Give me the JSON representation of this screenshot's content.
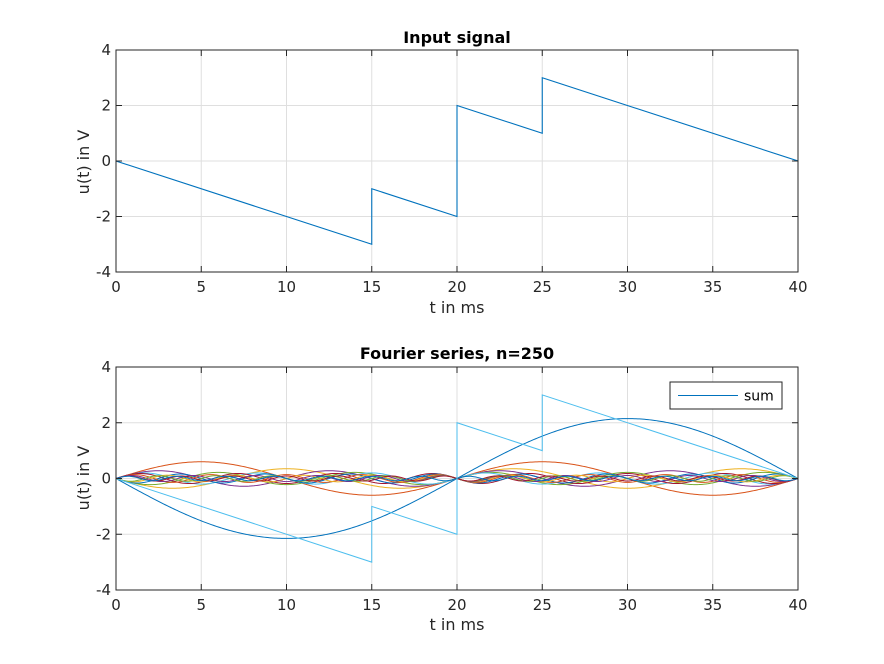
{
  "chart_data": [
    {
      "type": "line",
      "title": "Input  signal",
      "xlabel": "t in ms",
      "ylabel": "u(t) in V",
      "xlim": [
        0,
        40
      ],
      "ylim": [
        -4,
        4
      ],
      "xticks": [
        "0",
        "5",
        "10",
        "15",
        "20",
        "25",
        "30",
        "35",
        "40"
      ],
      "yticks": [
        "-4",
        "-2",
        "0",
        "2",
        "4"
      ],
      "grid": true,
      "series": [
        {
          "color": "#0072bd",
          "x": [
            0,
            15,
            15,
            20,
            20,
            25,
            25,
            40
          ],
          "y": [
            0,
            -3,
            -1,
            -2,
            2,
            1,
            3,
            0
          ]
        }
      ]
    },
    {
      "type": "line",
      "title": "Fourier series, n=250",
      "xlabel": "t in ms",
      "ylabel": "u(t) in V",
      "xlim": [
        0,
        40
      ],
      "ylim": [
        -4,
        4
      ],
      "xticks": [
        "0",
        "5",
        "10",
        "15",
        "20",
        "25",
        "30",
        "35",
        "40"
      ],
      "yticks": [
        "-4",
        "-2",
        "0",
        "2",
        "4"
      ],
      "grid": true,
      "legend": {
        "position": "top-right",
        "entries": [
          "sum"
        ]
      },
      "harmonics": [
        {
          "name": "1st harmonic",
          "color": "#0072bd",
          "amplitude": 2.15,
          "cycles": 1,
          "sign": -1
        },
        {
          "name": "2nd harmonic",
          "color": "#d95319",
          "amplitude": 0.6,
          "cycles": 2,
          "sign": 1
        },
        {
          "name": "3rd harmonic",
          "color": "#edb120",
          "amplitude": 0.35,
          "cycles": 3,
          "sign": -1
        },
        {
          "name": "4th harmonic",
          "color": "#7e2f8e",
          "amplitude": 0.28,
          "cycles": 4,
          "sign": 1
        },
        {
          "name": "5th harmonic",
          "color": "#77ac30",
          "amplitude": 0.22,
          "cycles": 5,
          "sign": -1
        },
        {
          "name": "6th harmonic",
          "color": "#4dbeee",
          "amplitude": 0.2,
          "cycles": 6,
          "sign": 1
        },
        {
          "name": "7th harmonic",
          "color": "#a2142f",
          "amplitude": 0.18,
          "cycles": 7,
          "sign": 1
        },
        {
          "name": "8th harmonic",
          "color": "#0072bd",
          "amplitude": 0.16,
          "cycles": 8,
          "sign": -1
        },
        {
          "name": "9th harmonic",
          "color": "#d95319",
          "amplitude": 0.14,
          "cycles": 9,
          "sign": 1
        },
        {
          "name": "10th harmonic",
          "color": "#edb120",
          "amplitude": 0.12,
          "cycles": 10,
          "sign": -1
        },
        {
          "name": "11th harmonic",
          "color": "#7e2f8e",
          "amplitude": 0.11,
          "cycles": 11,
          "sign": 1
        },
        {
          "name": "12th harmonic",
          "color": "#77ac30",
          "amplitude": 0.1,
          "cycles": 12,
          "sign": -1
        },
        {
          "name": "13th harmonic",
          "color": "#a2142f",
          "amplitude": 0.09,
          "cycles": 13,
          "sign": 1
        },
        {
          "name": "14th harmonic",
          "color": "#0072bd",
          "amplitude": 0.08,
          "cycles": 14,
          "sign": 1
        }
      ],
      "sum": {
        "name": "sum",
        "color": "#4dbeee",
        "x": [
          0,
          15,
          15,
          20,
          20,
          25,
          25,
          40
        ],
        "y": [
          0,
          -3,
          -1,
          -2,
          2,
          1,
          3,
          0
        ]
      }
    }
  ]
}
